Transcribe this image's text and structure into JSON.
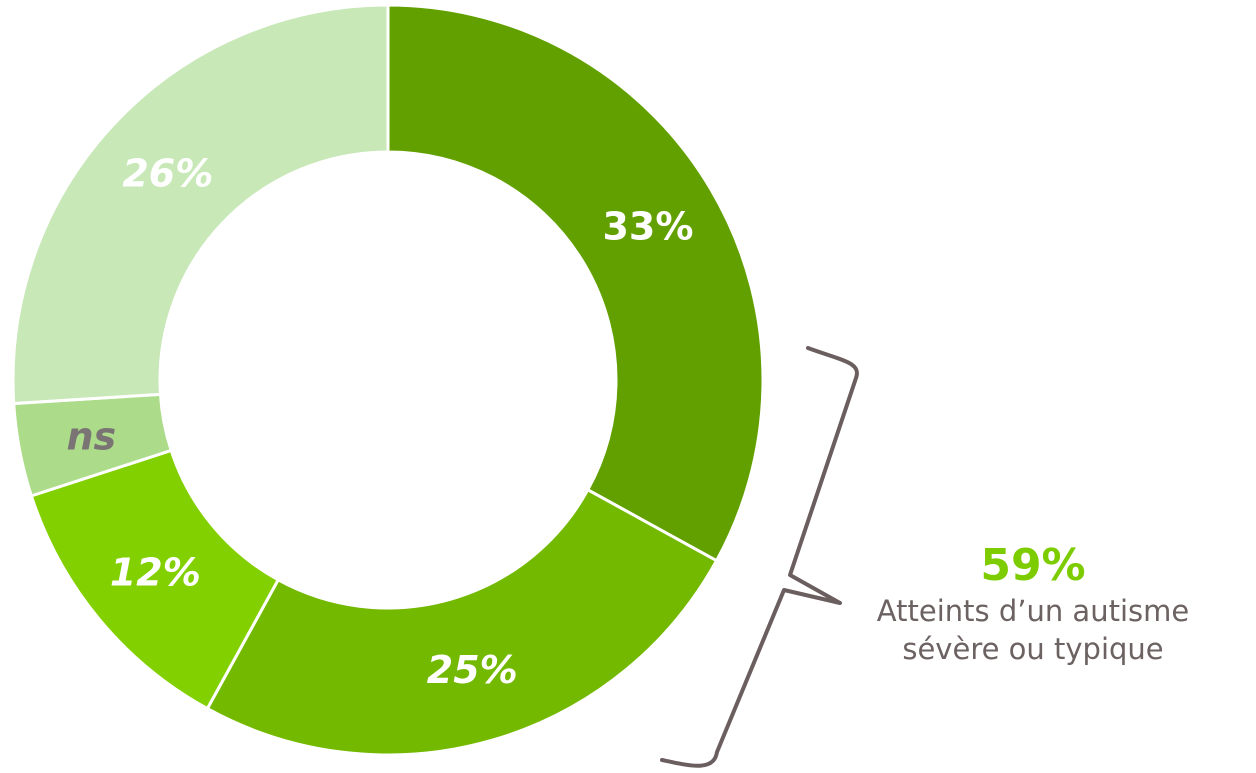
{
  "chart_data": {
    "type": "pie",
    "variant": "donut",
    "title": "",
    "slices": [
      {
        "label": "33%",
        "value": 33,
        "color": "#62a000",
        "label_color": "#ffffff",
        "italic": false
      },
      {
        "label": "25%",
        "value": 25,
        "color": "#72b900",
        "label_color": "#ffffff",
        "italic": true
      },
      {
        "label": "12%",
        "value": 12,
        "color": "#83d000",
        "label_color": "#ffffff",
        "italic": true
      },
      {
        "label": "ns",
        "value": 4,
        "color": "#acdc8a",
        "label_color": "#7a7475",
        "italic": true
      },
      {
        "label": "26%",
        "value": 26,
        "color": "#c8e8b8",
        "label_color": "#ffffff",
        "italic": true
      }
    ],
    "annotation": {
      "value": "59%",
      "value_color": "#7ccc00",
      "text_line1": "Atteints d’un autisme",
      "text_line2": "sévère ou typique",
      "text_color": "#6b6261",
      "bracket_color": "#6b5e5e"
    }
  }
}
